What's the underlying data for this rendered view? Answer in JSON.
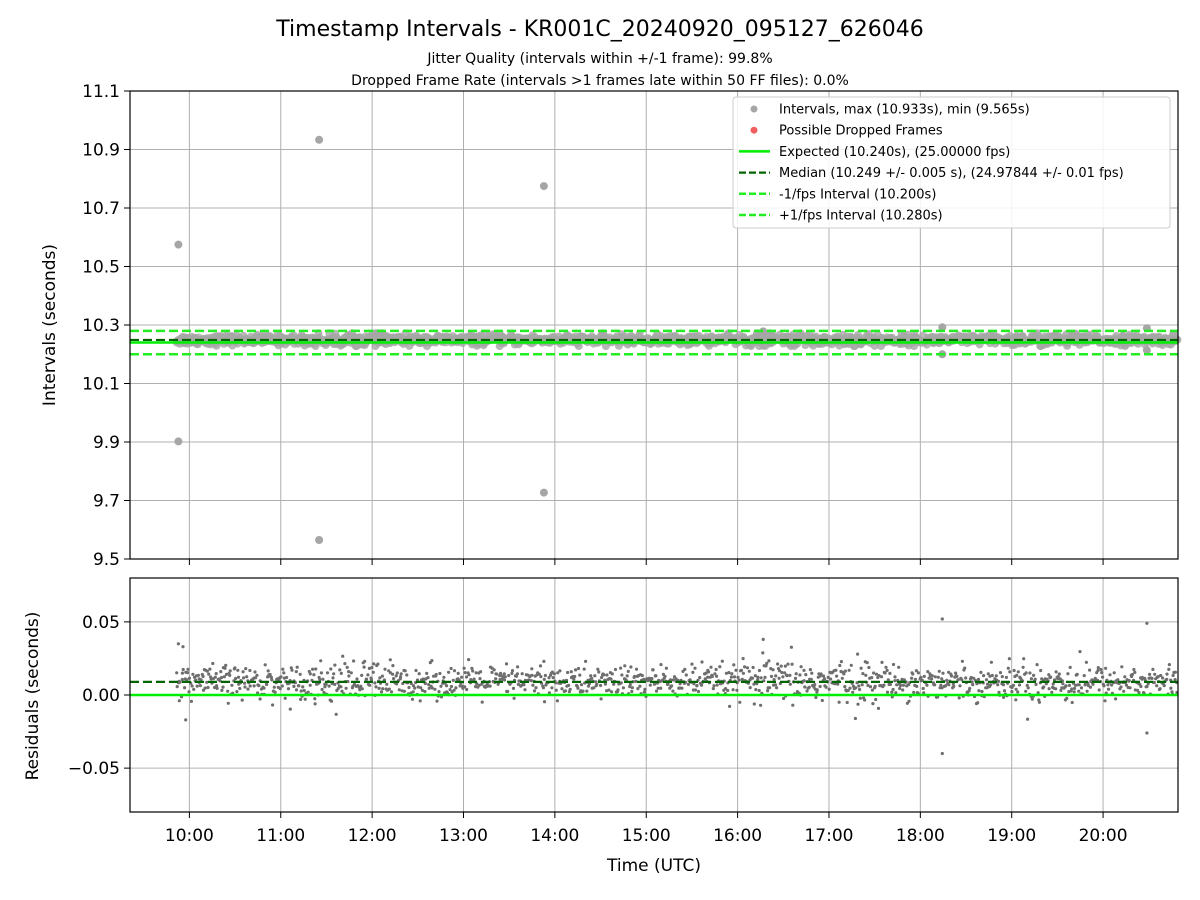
{
  "chart_data": [
    {
      "type": "scatter",
      "title": "Timestamp Intervals - KR001C_20240920_095127_626046",
      "subtitle_1": "Jitter Quality (intervals within +/-1 frame): 99.8%",
      "subtitle_2": "Dropped Frame Rate (intervals >1 frames late within 50 FF files): 0.0%",
      "xlabel": "",
      "ylabel": "Intervals (seconds)",
      "xlim_hours": [
        9.35,
        20.82
      ],
      "ylim": [
        9.5,
        11.1
      ],
      "yticks": [
        9.5,
        9.7,
        9.9,
        10.1,
        10.3,
        10.5,
        10.7,
        10.9,
        11.1
      ],
      "ytick_labels": [
        "9.5",
        "9.7",
        "9.9",
        "10.1",
        "10.3",
        "10.5",
        "10.7",
        "10.9",
        "11.1"
      ],
      "grid": true,
      "legend_position": "top-right",
      "legend": [
        "Intervals, max (10.933s), min (9.565s)",
        "Possible Dropped Frames",
        "Expected (10.240s), (25.00000 fps)",
        "Median (10.249 +/- 0.005 s), (24.97844 +/- 0.01 fps)",
        "-1/fps Interval (10.200s)",
        "+1/fps Interval (10.280s)"
      ],
      "lines": {
        "expected": 10.24,
        "median": 10.249,
        "minus_fps": 10.2,
        "plus_fps": 10.28
      },
      "outliers": [
        {
          "t": 9.88,
          "v": 10.575
        },
        {
          "t": 9.88,
          "v": 9.902
        },
        {
          "t": 11.42,
          "v": 10.933
        },
        {
          "t": 11.42,
          "v": 9.565
        },
        {
          "t": 13.88,
          "v": 10.775
        },
        {
          "t": 13.88,
          "v": 9.727
        },
        {
          "t": 18.24,
          "v": 10.292
        },
        {
          "t": 18.24,
          "v": 10.2
        },
        {
          "t": 20.48,
          "v": 10.289
        },
        {
          "t": 20.48,
          "v": 10.214
        },
        {
          "t": 16.28,
          "v": 10.278
        }
      ],
      "bulk": {
        "t_start": 9.86,
        "t_end": 20.82,
        "count": 1300,
        "center": 10.249,
        "spread": 0.012
      }
    },
    {
      "type": "scatter",
      "xlabel": "Time (UTC)",
      "ylabel": "Residuals (seconds)",
      "xlim_hours": [
        9.35,
        20.82
      ],
      "ylim": [
        -0.08,
        0.08
      ],
      "yticks": [
        -0.05,
        0.0,
        0.05
      ],
      "ytick_labels": [
        "−0.05",
        "0.00",
        "0.05"
      ],
      "xticks_hours": [
        10,
        11,
        12,
        13,
        14,
        15,
        16,
        17,
        18,
        19,
        20
      ],
      "xtick_labels": [
        "10:00",
        "11:00",
        "12:00",
        "13:00",
        "14:00",
        "15:00",
        "16:00",
        "17:00",
        "18:00",
        "19:00",
        "20:00"
      ],
      "grid": true,
      "lines": {
        "expected_residual": 0.0,
        "median_residual": 0.009
      },
      "outliers": [
        {
          "t": 9.88,
          "v": 0.035
        },
        {
          "t": 9.93,
          "v": 0.033
        },
        {
          "t": 9.96,
          "v": -0.017
        },
        {
          "t": 11.42,
          "v": 0.012
        },
        {
          "t": 13.88,
          "v": 0.023
        },
        {
          "t": 16.28,
          "v": 0.038
        },
        {
          "t": 18.24,
          "v": 0.052
        },
        {
          "t": 18.24,
          "v": -0.04
        },
        {
          "t": 20.48,
          "v": 0.049
        },
        {
          "t": 20.48,
          "v": -0.026
        }
      ],
      "bulk": {
        "t_start": 9.86,
        "t_end": 20.82,
        "count": 1300,
        "center": 0.009,
        "spread": 0.008
      }
    }
  ]
}
